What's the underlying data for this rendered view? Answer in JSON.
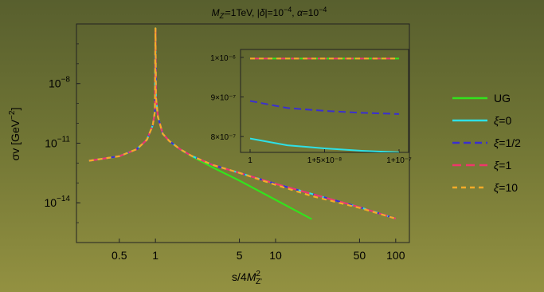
{
  "chart_data": {
    "type": "line",
    "title": "M_Z'=1TeV, |δ|=10^-4, α=10^-4",
    "title_parts": {
      "mz": "M",
      "mz_sub": "Z'",
      "mz_val": "=1TeV, |",
      "delta": "δ",
      "delta_rest": "|=10",
      "delta_exp": "−4",
      "alpha_sep": ", ",
      "alpha": "α",
      "alpha_rest": "=10",
      "alpha_exp": "−4"
    },
    "xlabel": {
      "prefix": "s/4",
      "M": "M",
      "sup": "2",
      "sub": "Z'"
    },
    "ylabel": {
      "sigma": "σ",
      "v": "v [GeV",
      "exp": "−2",
      "close": "]"
    },
    "x_scale": "log",
    "y_scale": "log",
    "xlim": [
      0.22,
      130
    ],
    "ylim": [
      1e-16,
      1e-05
    ],
    "x_ticks": [
      {
        "value": 0.5,
        "label": "0.5"
      },
      {
        "value": 1,
        "label": "1"
      },
      {
        "value": 5,
        "label": "5"
      },
      {
        "value": 10,
        "label": "10"
      },
      {
        "value": 50,
        "label": "50"
      },
      {
        "value": 100,
        "label": "100"
      }
    ],
    "y_ticks": [
      {
        "value": 1e-08,
        "base": "10",
        "exp": "−8"
      },
      {
        "value": 1e-11,
        "base": "10",
        "exp": "−11"
      },
      {
        "value": 1e-14,
        "base": "10",
        "exp": "−14"
      }
    ],
    "series": [
      {
        "name": "UG",
        "color": "#33e21d",
        "dash": "",
        "width": 2.2,
        "x": [
          0.28,
          0.5,
          0.7,
          0.85,
          0.95,
          0.99,
          1.0,
          1.01,
          1.05,
          1.15,
          1.3,
          1.6,
          2,
          3,
          5,
          10,
          20
        ],
        "y": [
          1.3e-12,
          2.2e-12,
          5e-12,
          1.5e-11,
          8e-11,
          4e-10,
          6e-06,
          2e-09,
          2e-10,
          3e-11,
          1.3e-11,
          5e-12,
          2.2e-12,
          6e-13,
          1.3e-13,
          1.4e-14,
          1.5e-15
        ]
      },
      {
        "name": "ξ=0",
        "color": "#2ee0e6",
        "dash": "",
        "width": 2.2,
        "x": [
          0.28,
          0.5,
          0.7,
          0.85,
          0.95,
          0.99,
          1.0,
          1.01,
          1.05,
          1.15,
          1.3,
          1.6,
          2,
          3,
          5,
          10,
          20,
          50,
          100
        ],
        "y": [
          1.3e-12,
          2.2e-12,
          5e-12,
          1.5e-11,
          8e-11,
          4e-10,
          6e-06,
          2e-09,
          2e-10,
          3e-11,
          1.3e-11,
          5e-12,
          2.3e-12,
          8e-13,
          3.2e-13,
          9e-14,
          2.8e-14,
          6e-15,
          1.6e-15
        ]
      },
      {
        "name": "ξ=1/2",
        "color": "#3a2fd0",
        "dash": "9,5",
        "width": 2.2,
        "x": [
          0.28,
          0.5,
          0.7,
          0.85,
          0.95,
          0.99,
          1.0,
          1.01,
          1.05,
          1.15,
          1.3,
          1.6,
          2,
          3,
          5,
          10,
          20,
          50,
          100
        ],
        "y": [
          1.3e-12,
          2.2e-12,
          5e-12,
          1.5e-11,
          8e-11,
          4e-10,
          6e-06,
          2e-09,
          2e-10,
          3e-11,
          1.3e-11,
          5e-12,
          2.3e-12,
          8e-13,
          3.2e-13,
          9e-14,
          2.8e-14,
          6e-15,
          1.6e-15
        ]
      },
      {
        "name": "ξ=1",
        "color": "#f0366b",
        "dash": "11,6",
        "width": 2.2,
        "x": [
          0.28,
          0.5,
          0.7,
          0.85,
          0.95,
          0.99,
          1.0,
          1.01,
          1.05,
          1.15,
          1.3,
          1.6,
          2,
          3,
          5,
          10,
          20,
          50,
          100
        ],
        "y": [
          1.3e-12,
          2.2e-12,
          5e-12,
          1.5e-11,
          8e-11,
          4e-10,
          6e-06,
          2e-09,
          2e-10,
          3e-11,
          1.3e-11,
          5e-12,
          2.3e-12,
          8e-13,
          3.2e-13,
          9e-14,
          2.8e-14,
          6e-15,
          1.6e-15
        ]
      },
      {
        "name": "ξ=10",
        "color": "#f4ab28",
        "dash": "6,5",
        "width": 2.2,
        "x": [
          0.28,
          0.5,
          0.7,
          0.85,
          0.95,
          0.99,
          1.0,
          1.01,
          1.05,
          1.15,
          1.3,
          1.6,
          2,
          3,
          5,
          10,
          20,
          50,
          100
        ],
        "y": [
          1.3e-12,
          2.2e-12,
          5e-12,
          1.5e-11,
          8e-11,
          4e-10,
          6e-06,
          2e-09,
          2e-10,
          3e-11,
          1.3e-11,
          5e-12,
          2.3e-12,
          8e-13,
          3.2e-13,
          8e-14,
          2.2e-14,
          5.5e-15,
          1.6e-15
        ]
      }
    ],
    "legend_position": "right",
    "inset": {
      "x_scale": "linear",
      "y_scale": "linear",
      "xlim": [
        1,
        1.0000001
      ],
      "ylim": [
        7.6e-07,
        1.02e-06
      ],
      "x_ticks": [
        {
          "value": 1,
          "label": "1"
        },
        {
          "value": 1.00000005,
          "label": "1+5×10⁻⁸"
        },
        {
          "value": 1.0000001,
          "label": "1+10⁻⁷"
        }
      ],
      "y_ticks": [
        {
          "value": 8e-07,
          "label": "8×10⁻⁷"
        },
        {
          "value": 9e-07,
          "label": "9×10⁻⁷"
        },
        {
          "value": 1e-06,
          "label": "1×10⁻⁶"
        }
      ],
      "series": [
        {
          "ref": "ξ=0",
          "x": [
            1,
            1.000000025,
            1.00000005,
            1.000000075,
            1.0000001
          ],
          "y": [
            7.95e-07,
            7.78e-07,
            7.7e-07,
            7.64e-07,
            7.6e-07
          ]
        },
        {
          "ref": "ξ=1/2",
          "x": [
            1,
            1.000000025,
            1.00000005,
            1.000000075,
            1.0000001
          ],
          "y": [
            8.9e-07,
            8.72e-07,
            8.65e-07,
            8.6e-07,
            8.57e-07
          ]
        },
        {
          "ref": "UG",
          "x": [
            1,
            1.0000001
          ],
          "y": [
            9.97e-07,
            9.97e-07
          ]
        },
        {
          "ref": "ξ=1",
          "x": [
            1,
            1.0000001
          ],
          "y": [
            9.97e-07,
            9.97e-07
          ]
        },
        {
          "ref": "ξ=10",
          "x": [
            1,
            1.0000001
          ],
          "y": [
            9.97e-07,
            9.97e-07
          ]
        }
      ]
    }
  }
}
